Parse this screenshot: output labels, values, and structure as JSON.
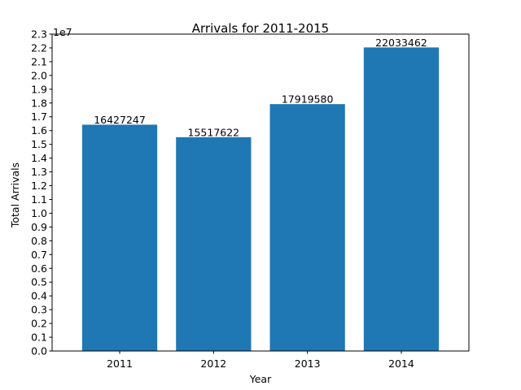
{
  "chart_data": {
    "type": "bar",
    "title": "Arrivals for 2011-2015",
    "xlabel": "Year",
    "ylabel": "Total Arrivals",
    "offset_label": "1e7",
    "categories": [
      "2011",
      "2012",
      "2013",
      "2014"
    ],
    "values": [
      16427247,
      15517622,
      17919580,
      22033462
    ],
    "value_labels": [
      "16427247",
      "15517622",
      "17919580",
      "22033462"
    ],
    "ylim": [
      0,
      23000000
    ],
    "yticks": [
      0,
      1000000,
      2000000,
      3000000,
      4000000,
      5000000,
      6000000,
      7000000,
      8000000,
      9000000,
      10000000,
      11000000,
      12000000,
      13000000,
      14000000,
      15000000,
      16000000,
      17000000,
      18000000,
      19000000,
      20000000,
      21000000,
      22000000,
      23000000
    ],
    "ytick_labels": [
      "0.0",
      "0.1",
      "0.2",
      "0.3",
      "0.4",
      "0.5",
      "0.6",
      "0.7",
      "0.8",
      "0.9",
      "1.0",
      "1.1",
      "1.2",
      "1.3",
      "1.4",
      "1.5",
      "1.6",
      "1.7",
      "1.8",
      "1.9",
      "2.0",
      "2.1",
      "2.2",
      "2.3"
    ],
    "grid": false,
    "bar_color": "#1f77b4"
  }
}
